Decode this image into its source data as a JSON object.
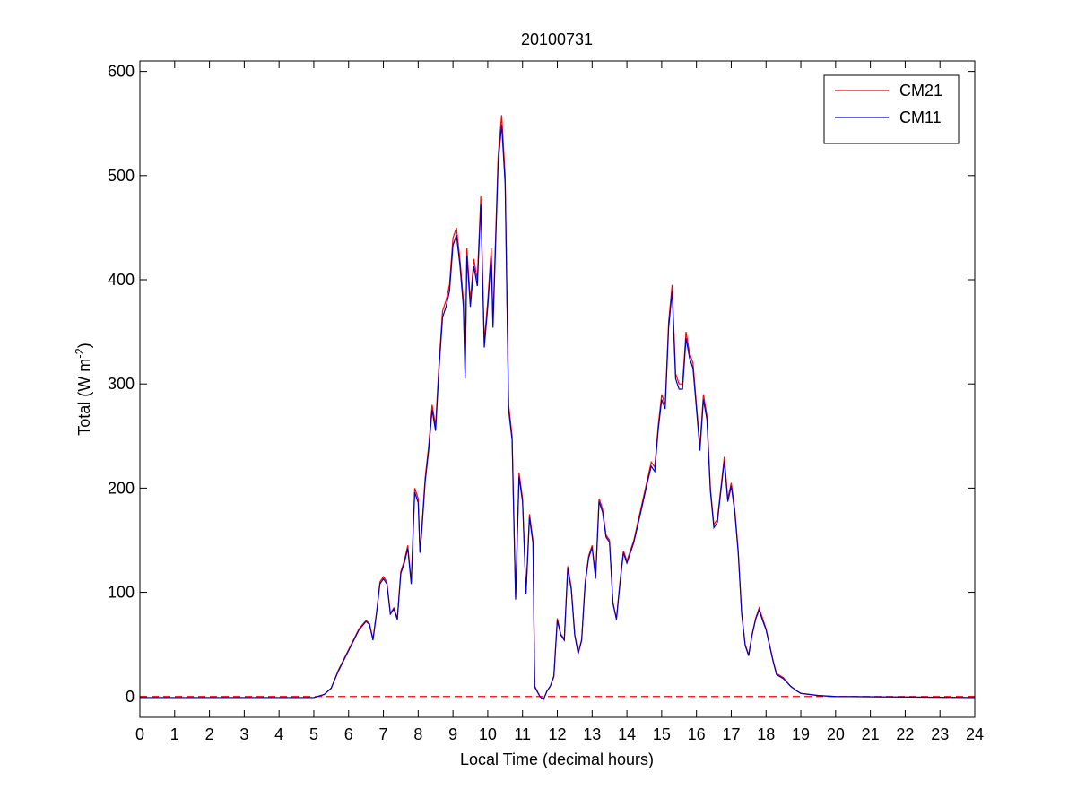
{
  "chart_data": {
    "type": "line",
    "title": "20100731",
    "xlabel": "Local Time (decimal hours)",
    "ylabel_parts": [
      "Total (W m",
      "-2",
      ")"
    ],
    "x": [
      0,
      5,
      5.3,
      5.5,
      5.7,
      6,
      6.3,
      6.5,
      6.6,
      6.7,
      6.8,
      6.9,
      7,
      7.1,
      7.2,
      7.3,
      7.4,
      7.5,
      7.6,
      7.7,
      7.8,
      7.9,
      8,
      8.05,
      8.1,
      8.2,
      8.3,
      8.4,
      8.5,
      8.6,
      8.7,
      8.8,
      8.9,
      9,
      9.1,
      9.2,
      9.3,
      9.35,
      9.4,
      9.5,
      9.6,
      9.7,
      9.8,
      9.9,
      10,
      10.1,
      10.15,
      10.3,
      10.4,
      10.5,
      10.6,
      10.7,
      10.8,
      10.9,
      11,
      11.1,
      11.2,
      11.3,
      11.35,
      11.5,
      11.6,
      11.7,
      11.8,
      11.9,
      12,
      12.1,
      12.2,
      12.3,
      12.4,
      12.5,
      12.6,
      12.7,
      12.8,
      12.9,
      13,
      13.1,
      13.2,
      13.3,
      13.4,
      13.5,
      13.6,
      13.7,
      13.8,
      13.9,
      14,
      14.1,
      14.2,
      14.4,
      14.6,
      14.7,
      14.8,
      14.9,
      15,
      15.1,
      15.2,
      15.3,
      15.4,
      15.5,
      15.6,
      15.7,
      15.8,
      15.9,
      16,
      16.1,
      16.2,
      16.3,
      16.4,
      16.5,
      16.6,
      16.7,
      16.8,
      16.9,
      17,
      17.1,
      17.2,
      17.3,
      17.4,
      17.5,
      17.6,
      17.7,
      17.8,
      17.9,
      18,
      18.1,
      18.2,
      18.3,
      18.5,
      18.7,
      18.9,
      19,
      19.5,
      20,
      24
    ],
    "series": [
      {
        "name": "CM21",
        "color": "#ff0000",
        "values": [
          -1,
          -1,
          2,
          8,
          25,
          45,
          65,
          73,
          70,
          55,
          80,
          110,
          115,
          110,
          80,
          85,
          75,
          120,
          130,
          145,
          110,
          200,
          190,
          140,
          160,
          210,
          240,
          280,
          260,
          320,
          370,
          380,
          395,
          440,
          450,
          420,
          380,
          310,
          430,
          380,
          420,
          400,
          480,
          340,
          380,
          430,
          360,
          520,
          558,
          500,
          280,
          250,
          95,
          215,
          190,
          100,
          175,
          150,
          10,
          0,
          -3,
          5,
          10,
          20,
          75,
          60,
          55,
          125,
          105,
          60,
          42,
          55,
          110,
          135,
          145,
          115,
          190,
          180,
          155,
          150,
          90,
          75,
          110,
          140,
          130,
          140,
          150,
          180,
          210,
          225,
          220,
          260,
          290,
          280,
          360,
          395,
          310,
          300,
          300,
          350,
          330,
          320,
          280,
          240,
          290,
          270,
          200,
          165,
          170,
          200,
          230,
          190,
          205,
          180,
          140,
          80,
          50,
          40,
          60,
          75,
          85,
          75,
          65,
          50,
          35,
          22,
          18,
          10,
          5,
          3,
          1,
          0,
          -1
        ]
      },
      {
        "name": "CM11",
        "color": "#0000c0",
        "values": [
          -1,
          -1,
          2,
          8,
          24,
          44,
          64,
          72,
          69,
          54,
          79,
          108,
          113,
          108,
          79,
          84,
          74,
          118,
          128,
          142,
          108,
          196,
          186,
          138,
          157,
          206,
          236,
          275,
          255,
          315,
          364,
          374,
          389,
          433,
          443,
          414,
          374,
          305,
          423,
          374,
          413,
          394,
          472,
          335,
          374,
          423,
          354,
          512,
          549,
          492,
          275,
          246,
          93,
          211,
          187,
          98,
          172,
          147,
          9,
          0,
          -3,
          5,
          10,
          19,
          73,
          59,
          54,
          123,
          103,
          59,
          41,
          54,
          108,
          133,
          143,
          113,
          187,
          177,
          153,
          148,
          89,
          74,
          108,
          138,
          128,
          138,
          148,
          177,
          207,
          221,
          216,
          256,
          285,
          276,
          354,
          389,
          305,
          295,
          295,
          344,
          325,
          315,
          276,
          236,
          285,
          266,
          197,
          162,
          167,
          197,
          226,
          187,
          202,
          177,
          138,
          79,
          49,
          39,
          59,
          74,
          83,
          73,
          64,
          49,
          34,
          21,
          17,
          10,
          5,
          3,
          1,
          0,
          -1
        ]
      }
    ],
    "hline": {
      "value": 0,
      "color": "#ff0000"
    },
    "xlim": [
      0,
      24
    ],
    "xticks": [
      0,
      1,
      2,
      3,
      4,
      5,
      6,
      7,
      8,
      9,
      10,
      11,
      12,
      13,
      14,
      15,
      16,
      17,
      18,
      19,
      20,
      21,
      22,
      23,
      24
    ],
    "ylim": [
      -20,
      610
    ],
    "yticks": [
      0,
      100,
      200,
      300,
      400,
      500,
      600
    ],
    "legend": "northeast"
  }
}
